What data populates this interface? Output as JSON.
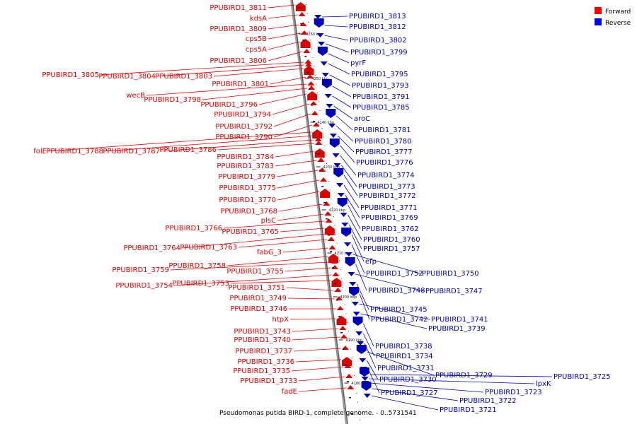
{
  "caption": "Pseudomonas putida BIRD-1, complete genome. - 0..5731541",
  "legend": [
    {
      "label": "Forward",
      "color": "#ff0000"
    },
    {
      "label": "Reverse",
      "color": "#0000ff"
    }
  ],
  "colors": {
    "forward": "#dd0000",
    "reverse": "#0000bb",
    "axis": "#888888"
  },
  "ticks": [
    "4260 kbp",
    "4250 kbp",
    "4240 kbp",
    "4230 kbp",
    "4220 kbp",
    "4210 kbp",
    "4200 kbp",
    "4190 kbp",
    "4180 kbp"
  ],
  "forward_genes": [
    "PPUBIRD1_3811",
    "kdsA",
    "PPUBIRD1_3809",
    "cps5B",
    "cps5A",
    "PPUBIRD1_3806",
    "PPUBIRD1_3805",
    "PPUBIRD1_3804",
    "PPUBIRD1_3803",
    "PPUBIRD1_3801",
    "wecB",
    "PPUBIRD1_3798",
    "PPUBIRD1_3796",
    "PPUBIRD1_3794",
    "PPUBIRD1_3792",
    "PPUBIRD1_3790",
    "folE",
    "PPUBIRD1_3788",
    "PPUBIRD1_3787",
    "PPUBIRD1_3786",
    "PPUBIRD1_3784",
    "PPUBIRD1_3783",
    "PPUBIRD1_3779",
    "PPUBIRD1_3775",
    "PPUBIRD1_3770",
    "PPUBIRD1_3768",
    "plsC",
    "PPUBIRD1_3766",
    "PPUBIRD1_3765",
    "PPUBIRD1_3764",
    "PPUBIRD1_3763",
    "fabG_3",
    "PPUBIRD1_3758",
    "PPUBIRD1_3759",
    "PPUBIRD1_3755",
    "PPUBIRD1_3754",
    "PPUBIRD1_3753",
    "PPUBIRD1_3751",
    "PPUBIRD1_3749",
    "PPUBIRD1_3746",
    "htpX",
    "PPUBIRD1_3743",
    "PPUBIRD1_3740",
    "PPUBIRD1_3737",
    "PPUBIRD1_3736",
    "PPUBIRD1_3735",
    "PPUBIRD1_3733",
    "fadE"
  ],
  "reverse_genes": [
    "PPUBIRD1_3813",
    "PPUBIRD1_3812",
    "PPUBIRD1_3802",
    "PPUBIRD1_3799",
    "pyrF",
    "PPUBIRD1_3795",
    "PPUBIRD1_3793",
    "PPUBIRD1_3791",
    "PPUBIRD1_3785",
    "aroC",
    "PPUBIRD1_3781",
    "PPUBIRD1_3780",
    "PPUBIRD1_3777",
    "PPUBIRD1_3776",
    "PPUBIRD1_3774",
    "PPUBIRD1_3773",
    "PPUBIRD1_3772",
    "PPUBIRD1_3771",
    "PPUBIRD1_3769",
    "PPUBIRD1_3762",
    "PPUBIRD1_3760",
    "PPUBIRD1_3757",
    "efp",
    "PPUBIRD1_3752",
    "PPUBIRD1_3750",
    "PPUBIRD1_3748",
    "PPUBIRD1_3747",
    "PPUBIRD1_3745",
    "PPUBIRD1_3742",
    "PPUBIRD1_3741",
    "PPUBIRD1_3739",
    "PPUBIRD1_3738",
    "PPUBIRD1_3734",
    "PPUBIRD1_3731",
    "PPUBIRD1_3729",
    "PPUBIRD1_3730",
    "PPUBIRD1_3727",
    "PPUBIRD1_3725",
    "lpxK",
    "PPUBIRD1_3723",
    "PPUBIRD1_3722",
    "PPUBIRD1_3721"
  ]
}
